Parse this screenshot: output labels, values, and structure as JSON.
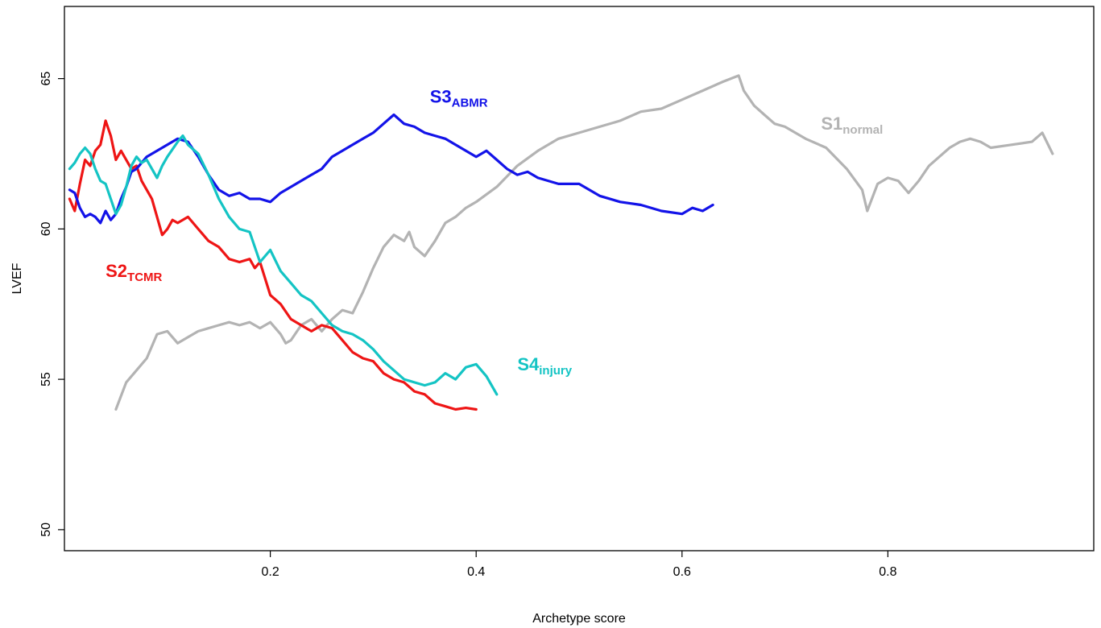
{
  "chart_data": {
    "type": "line",
    "title": "",
    "xlabel": "Archetype score",
    "ylabel": "LVEF",
    "xlim": [
      0.0,
      1.0
    ],
    "ylim": [
      49.3,
      67.4
    ],
    "x_ticks": [
      0.2,
      0.4,
      0.6,
      0.8
    ],
    "y_ticks": [
      50,
      55,
      60,
      65
    ],
    "x_tick_labels": [
      "0.2",
      "0.4",
      "0.6",
      "0.8"
    ],
    "y_tick_labels": [
      "50",
      "55",
      "60",
      "65"
    ],
    "grid": false,
    "legend": "none (labels placed next to each series)",
    "series": [
      {
        "name": "S1normal",
        "label_main": "S1",
        "label_sub": "normal",
        "color": "#b3b3b3",
        "label_at": [
          0.735,
          63.3
        ],
        "x": [
          0.05,
          0.06,
          0.07,
          0.08,
          0.09,
          0.1,
          0.11,
          0.12,
          0.13,
          0.15,
          0.16,
          0.17,
          0.18,
          0.19,
          0.2,
          0.21,
          0.215,
          0.22,
          0.23,
          0.24,
          0.25,
          0.26,
          0.27,
          0.28,
          0.29,
          0.3,
          0.31,
          0.32,
          0.33,
          0.335,
          0.34,
          0.35,
          0.36,
          0.37,
          0.38,
          0.39,
          0.4,
          0.42,
          0.44,
          0.46,
          0.48,
          0.5,
          0.52,
          0.54,
          0.56,
          0.58,
          0.6,
          0.62,
          0.64,
          0.655,
          0.66,
          0.67,
          0.68,
          0.69,
          0.7,
          0.72,
          0.74,
          0.76,
          0.775,
          0.78,
          0.79,
          0.8,
          0.81,
          0.82,
          0.83,
          0.84,
          0.85,
          0.86,
          0.87,
          0.88,
          0.89,
          0.9,
          0.92,
          0.94,
          0.95,
          0.96
        ],
        "values": [
          54.0,
          54.9,
          55.3,
          55.7,
          56.5,
          56.6,
          56.2,
          56.4,
          56.6,
          56.8,
          56.9,
          56.8,
          56.9,
          56.7,
          56.9,
          56.5,
          56.2,
          56.3,
          56.8,
          57.0,
          56.6,
          57.0,
          57.3,
          57.2,
          57.9,
          58.7,
          59.4,
          59.8,
          59.6,
          59.9,
          59.4,
          59.1,
          59.6,
          60.2,
          60.4,
          60.7,
          60.9,
          61.4,
          62.1,
          62.6,
          63.0,
          63.2,
          63.4,
          63.6,
          63.9,
          64.0,
          64.3,
          64.6,
          64.9,
          65.1,
          64.6,
          64.1,
          63.8,
          63.5,
          63.4,
          63.0,
          62.7,
          62.0,
          61.3,
          60.6,
          61.5,
          61.7,
          61.6,
          61.2,
          61.6,
          62.1,
          62.4,
          62.7,
          62.9,
          63.0,
          62.9,
          62.7,
          62.8,
          62.9,
          63.2,
          62.5
        ]
      },
      {
        "name": "S2TCMR",
        "label_main": "S2",
        "label_sub": "TCMR",
        "color": "#ee1515",
        "label_at": [
          0.04,
          58.4
        ],
        "x": [
          0.005,
          0.01,
          0.015,
          0.02,
          0.025,
          0.03,
          0.035,
          0.04,
          0.045,
          0.05,
          0.055,
          0.06,
          0.065,
          0.07,
          0.075,
          0.08,
          0.085,
          0.09,
          0.095,
          0.1,
          0.105,
          0.11,
          0.12,
          0.13,
          0.14,
          0.15,
          0.16,
          0.17,
          0.18,
          0.185,
          0.19,
          0.2,
          0.21,
          0.22,
          0.23,
          0.24,
          0.25,
          0.26,
          0.27,
          0.28,
          0.29,
          0.3,
          0.31,
          0.32,
          0.33,
          0.34,
          0.35,
          0.36,
          0.37,
          0.38,
          0.39,
          0.4
        ],
        "values": [
          61.0,
          60.6,
          61.5,
          62.3,
          62.1,
          62.6,
          62.8,
          63.6,
          63.1,
          62.3,
          62.6,
          62.3,
          62.0,
          62.1,
          61.6,
          61.3,
          61.0,
          60.4,
          59.8,
          60.0,
          60.3,
          60.2,
          60.4,
          60.0,
          59.6,
          59.4,
          59.0,
          58.9,
          59.0,
          58.7,
          58.9,
          57.8,
          57.5,
          57.0,
          56.8,
          56.6,
          56.8,
          56.7,
          56.3,
          55.9,
          55.7,
          55.6,
          55.2,
          55.0,
          54.9,
          54.6,
          54.5,
          54.2,
          54.1,
          54.0,
          54.05,
          54.0
        ]
      },
      {
        "name": "S3ABMR",
        "label_main": "S3",
        "label_sub": "ABMR",
        "color": "#1313e8",
        "label_at": [
          0.355,
          64.2
        ],
        "x": [
          0.005,
          0.01,
          0.015,
          0.02,
          0.025,
          0.03,
          0.035,
          0.04,
          0.045,
          0.05,
          0.055,
          0.06,
          0.065,
          0.07,
          0.08,
          0.09,
          0.1,
          0.11,
          0.12,
          0.13,
          0.14,
          0.15,
          0.16,
          0.17,
          0.18,
          0.19,
          0.2,
          0.21,
          0.22,
          0.23,
          0.24,
          0.25,
          0.26,
          0.27,
          0.28,
          0.29,
          0.3,
          0.31,
          0.32,
          0.33,
          0.34,
          0.35,
          0.36,
          0.37,
          0.38,
          0.39,
          0.4,
          0.41,
          0.42,
          0.43,
          0.44,
          0.45,
          0.46,
          0.48,
          0.5,
          0.52,
          0.54,
          0.56,
          0.58,
          0.6,
          0.61,
          0.62,
          0.63
        ],
        "values": [
          61.3,
          61.2,
          60.7,
          60.4,
          60.5,
          60.4,
          60.2,
          60.6,
          60.3,
          60.5,
          61.0,
          61.4,
          61.9,
          62.0,
          62.4,
          62.6,
          62.8,
          63.0,
          62.9,
          62.4,
          61.8,
          61.3,
          61.1,
          61.2,
          61.0,
          61.0,
          60.9,
          61.2,
          61.4,
          61.6,
          61.8,
          62.0,
          62.4,
          62.6,
          62.8,
          63.0,
          63.2,
          63.5,
          63.8,
          63.5,
          63.4,
          63.2,
          63.1,
          63.0,
          62.8,
          62.6,
          62.4,
          62.6,
          62.3,
          62.0,
          61.8,
          61.9,
          61.7,
          61.5,
          61.5,
          61.1,
          60.9,
          60.8,
          60.6,
          60.5,
          60.7,
          60.6,
          60.8
        ]
      },
      {
        "name": "S4injury",
        "label_main": "S4",
        "label_sub": "injury",
        "color": "#14c4c4",
        "label_at": [
          0.44,
          55.3
        ],
        "x": [
          0.005,
          0.01,
          0.015,
          0.02,
          0.025,
          0.03,
          0.035,
          0.04,
          0.045,
          0.05,
          0.055,
          0.06,
          0.065,
          0.07,
          0.075,
          0.08,
          0.085,
          0.09,
          0.095,
          0.1,
          0.11,
          0.115,
          0.12,
          0.13,
          0.14,
          0.15,
          0.16,
          0.17,
          0.18,
          0.19,
          0.2,
          0.21,
          0.22,
          0.23,
          0.24,
          0.25,
          0.26,
          0.27,
          0.28,
          0.29,
          0.3,
          0.31,
          0.32,
          0.33,
          0.34,
          0.35,
          0.36,
          0.37,
          0.38,
          0.39,
          0.4,
          0.41,
          0.42
        ],
        "values": [
          62.0,
          62.2,
          62.5,
          62.7,
          62.5,
          62.0,
          61.6,
          61.5,
          61.0,
          60.5,
          60.8,
          61.4,
          62.1,
          62.4,
          62.2,
          62.3,
          62.0,
          61.7,
          62.1,
          62.4,
          62.9,
          63.1,
          62.8,
          62.5,
          61.8,
          61.0,
          60.4,
          60.0,
          59.9,
          58.9,
          59.3,
          58.6,
          58.2,
          57.8,
          57.6,
          57.2,
          56.8,
          56.6,
          56.5,
          56.3,
          56.0,
          55.6,
          55.3,
          55.0,
          54.9,
          54.8,
          54.9,
          55.2,
          55.0,
          55.4,
          55.5,
          55.1,
          54.5
        ]
      }
    ]
  }
}
